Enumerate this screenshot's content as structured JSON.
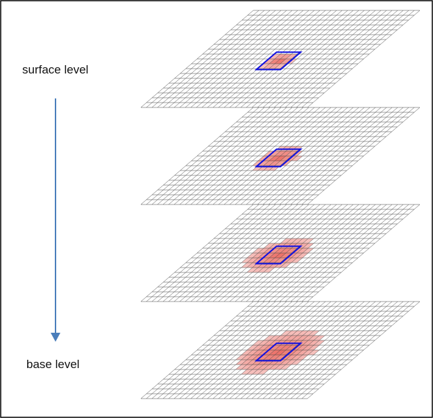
{
  "labels": {
    "top": "surface level",
    "bottom": "base level"
  }
}
